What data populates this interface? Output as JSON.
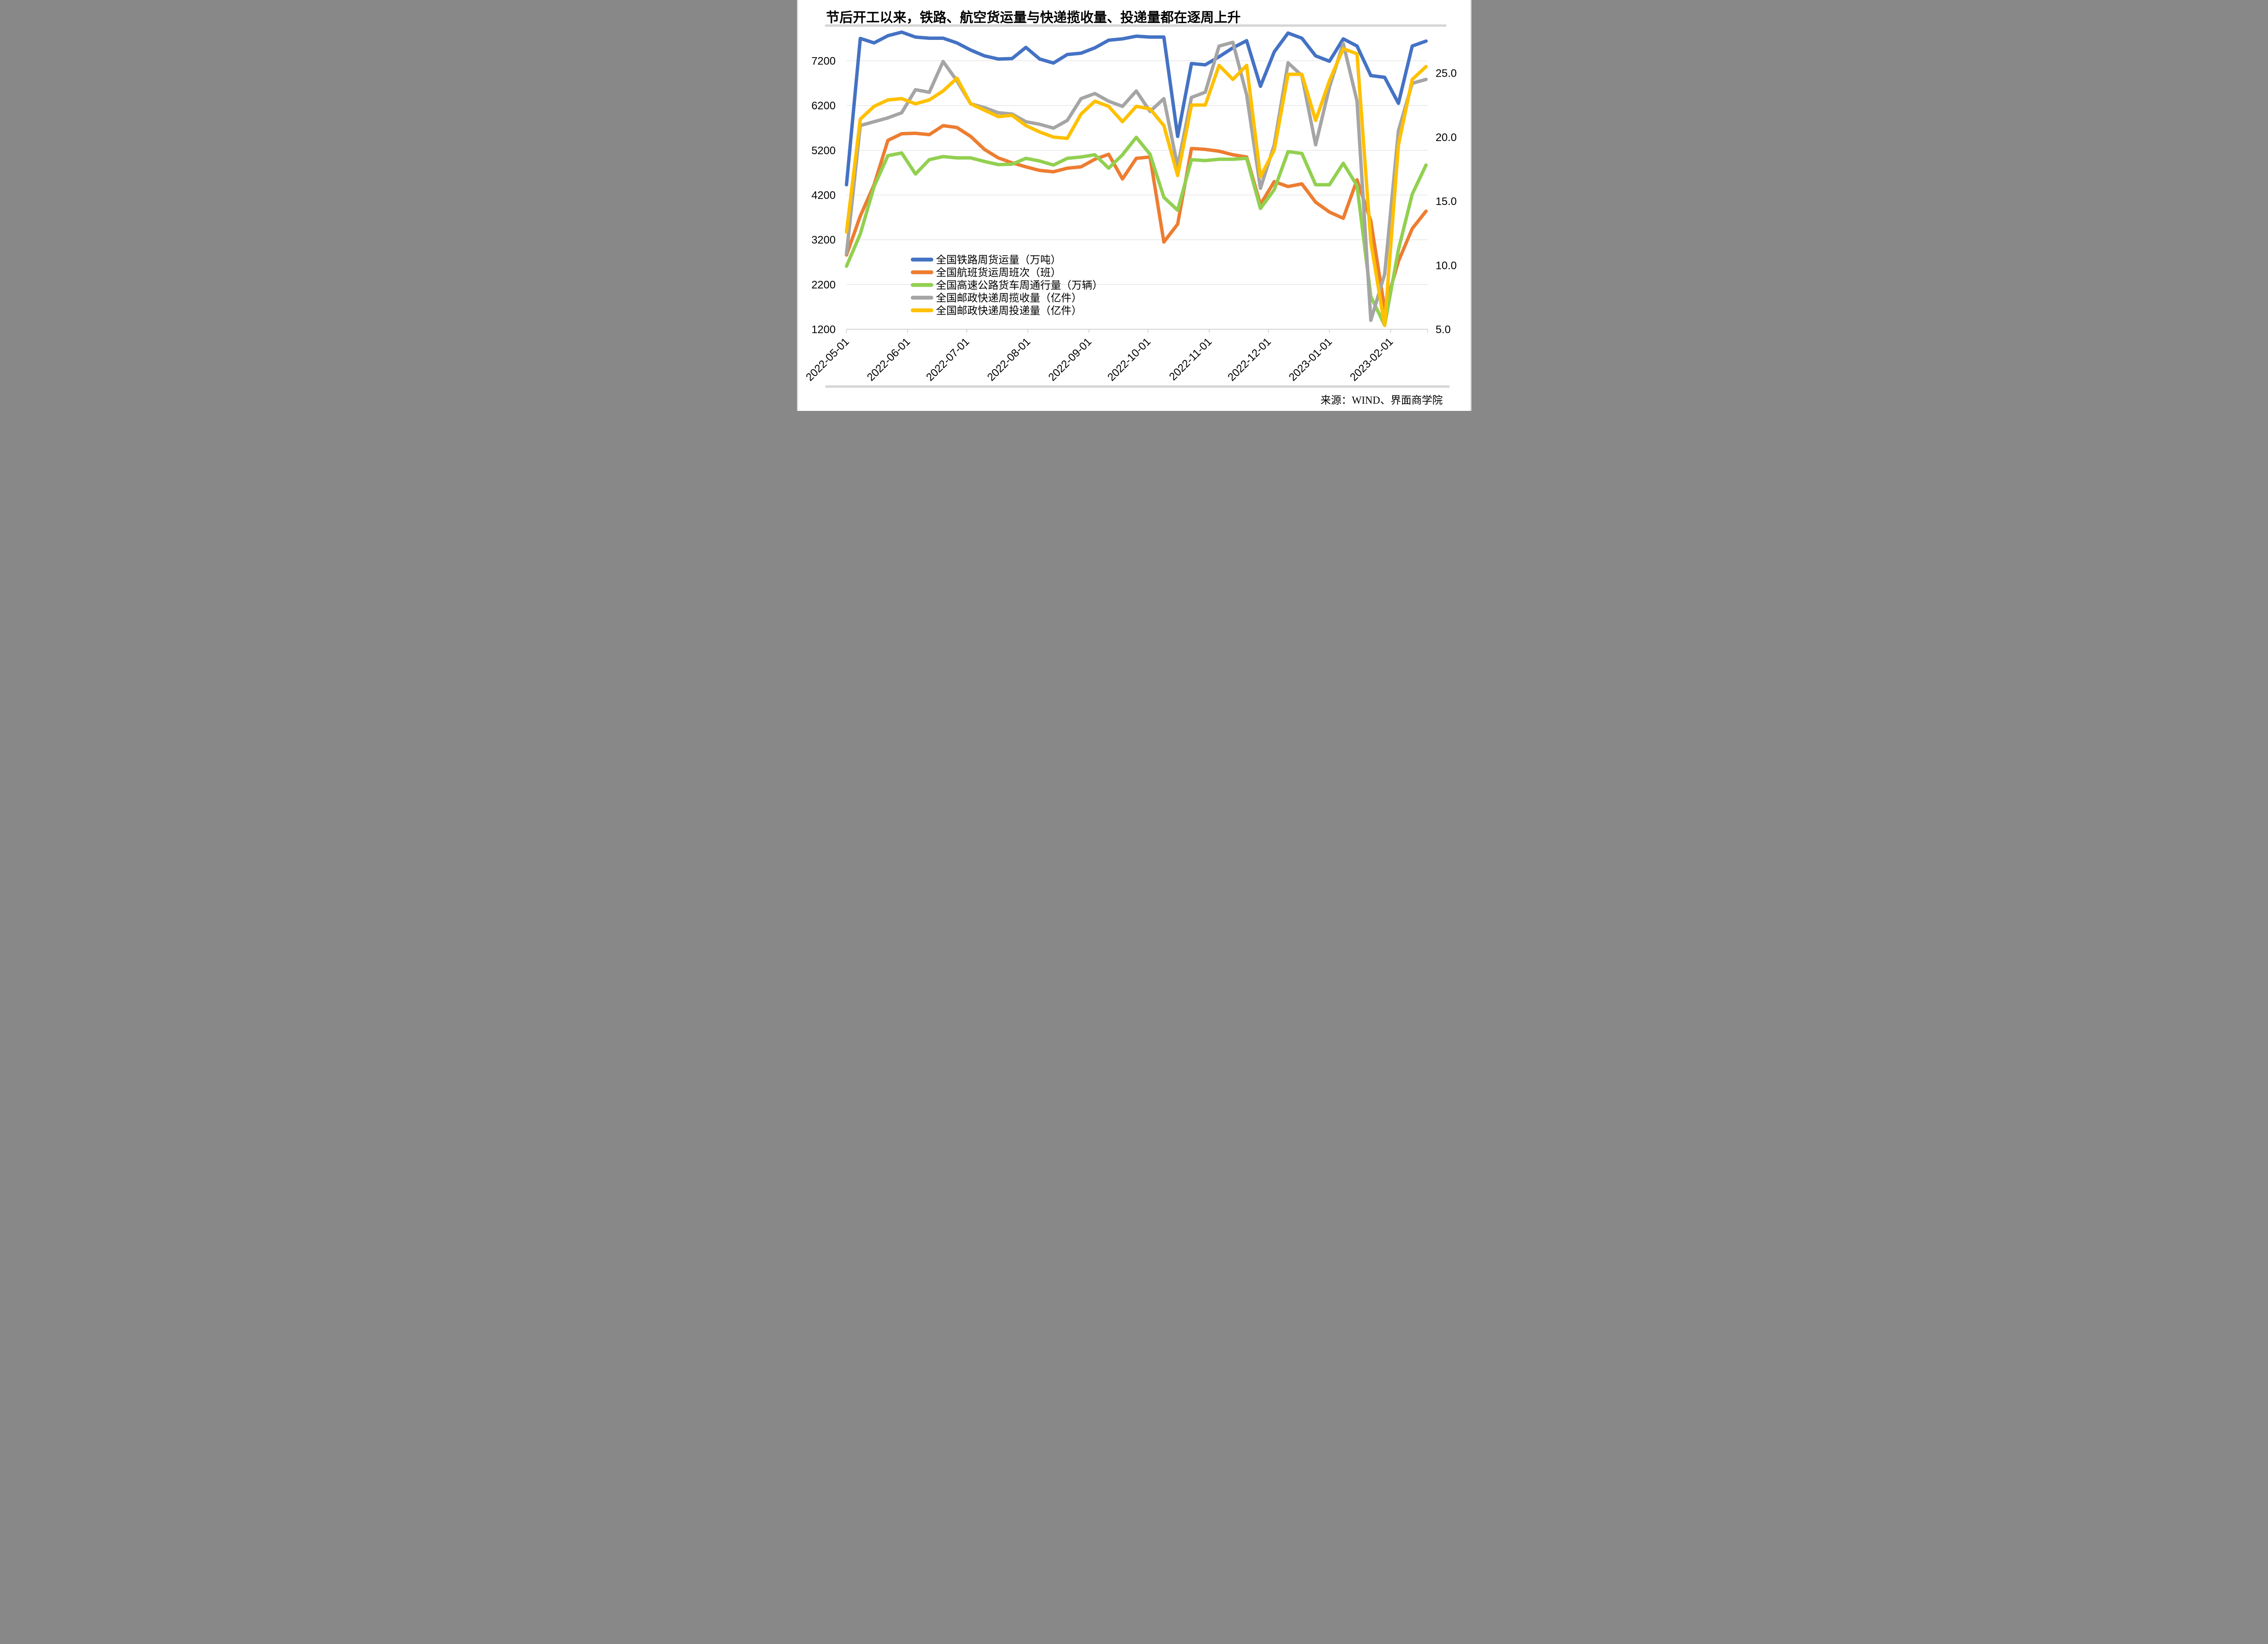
{
  "title": "节后开工以来，铁路、航空货运量与快递揽收量、投递量都在逐周上升",
  "source": "来源：WIND、界面商学院",
  "colors": {
    "rail_blue": "#4472C4",
    "flight_orange": "#ED7D31",
    "truck_green": "#92D050",
    "pickup_gray": "#A5A5A5",
    "delivery_yellow": "#FFC000",
    "gridline": "#D9D9D9",
    "axis_line": "#BFBFBF",
    "divider_bar": "#D6D6D6"
  },
  "chart_data": {
    "type": "line",
    "x_weekly_dates": [
      "2022-05-01",
      "2022-05-08",
      "2022-05-15",
      "2022-05-22",
      "2022-05-29",
      "2022-06-05",
      "2022-06-12",
      "2022-06-19",
      "2022-06-26",
      "2022-07-03",
      "2022-07-10",
      "2022-07-17",
      "2022-07-24",
      "2022-07-31",
      "2022-08-07",
      "2022-08-14",
      "2022-08-21",
      "2022-08-28",
      "2022-09-04",
      "2022-09-11",
      "2022-09-18",
      "2022-09-25",
      "2022-10-02",
      "2022-10-09",
      "2022-10-16",
      "2022-10-23",
      "2022-10-30",
      "2022-11-06",
      "2022-11-13",
      "2022-11-20",
      "2022-11-27",
      "2022-12-04",
      "2022-12-11",
      "2022-12-18",
      "2022-12-25",
      "2023-01-01",
      "2023-01-08",
      "2023-01-15",
      "2023-01-22",
      "2023-01-29",
      "2023-02-05",
      "2023-02-12",
      "2023-02-19"
    ],
    "x_tick_labels": [
      "2022-05-01",
      "2022-06-01",
      "2022-07-01",
      "2022-08-01",
      "2022-09-01",
      "2022-10-01",
      "2022-11-01",
      "2022-12-01",
      "2023-01-01",
      "2023-02-01"
    ],
    "x_tick_day_offsets": [
      0,
      31,
      61,
      92,
      123,
      153,
      184,
      214,
      245,
      276
    ],
    "total_days": 294,
    "series": [
      {
        "name": "全国铁路周货运量（万吨）",
        "axis": "left",
        "color_key": "rail_blue",
        "values": [
          4430,
          7700,
          7600,
          7760,
          7840,
          7730,
          7705,
          7705,
          7600,
          7440,
          7310,
          7240,
          7250,
          7500,
          7240,
          7150,
          7340,
          7370,
          7490,
          7660,
          7690,
          7750,
          7730,
          7730,
          5510,
          7140,
          7110,
          7290,
          7490,
          7650,
          6630,
          7400,
          7820,
          7705,
          7310,
          7190,
          7690,
          7530,
          6870,
          6830,
          6250,
          7530,
          7640
        ]
      },
      {
        "name": "全国航班货运周班次（班）",
        "axis": "left",
        "color_key": "flight_orange",
        "values": [
          2860,
          3730,
          4430,
          5420,
          5570,
          5580,
          5550,
          5750,
          5710,
          5510,
          5220,
          5030,
          4920,
          4830,
          4750,
          4720,
          4800,
          4830,
          5000,
          5110,
          4560,
          5020,
          5050,
          3150,
          3550,
          5240,
          5220,
          5180,
          5100,
          5050,
          3990,
          4500,
          4390,
          4450,
          4040,
          3820,
          3680,
          4540,
          3620,
          1660,
          2720,
          3450,
          3840
        ]
      },
      {
        "name": "全国高速公路货车周通行量（万辆）",
        "axis": "left",
        "color_key": "truck_green",
        "values": [
          2610,
          3330,
          4390,
          5080,
          5140,
          4670,
          4990,
          5060,
          5030,
          5030,
          4950,
          4880,
          4890,
          5020,
          4960,
          4870,
          5020,
          5050,
          5100,
          4800,
          5100,
          5490,
          5110,
          4150,
          3860,
          4990,
          4970,
          5000,
          5000,
          5020,
          3900,
          4320,
          5170,
          5130,
          4430,
          4430,
          4910,
          4410,
          1930,
          1290,
          2980,
          4220,
          4870
        ]
      },
      {
        "name": "全国邮政快递周揽收量（亿件）",
        "axis": "right",
        "color_key": "pickup_gray",
        "values": [
          10.9,
          20.9,
          21.2,
          21.5,
          21.9,
          23.7,
          23.5,
          25.9,
          24.4,
          22.6,
          22.3,
          21.9,
          21.8,
          21.2,
          21.0,
          20.7,
          21.3,
          23.0,
          23.4,
          22.8,
          22.4,
          23.6,
          22.0,
          23.0,
          17.7,
          23.1,
          23.5,
          27.1,
          27.4,
          23.3,
          16.0,
          19.4,
          25.8,
          24.8,
          19.4,
          23.9,
          27.3,
          22.8,
          5.7,
          9.3,
          20.5,
          24.2,
          24.5
        ]
      },
      {
        "name": "全国邮政快递周投递量（亿件）",
        "axis": "right",
        "color_key": "delivery_yellow",
        "values": [
          12.6,
          21.4,
          22.4,
          22.9,
          23.0,
          22.6,
          22.9,
          23.6,
          24.6,
          22.6,
          22.1,
          21.6,
          21.7,
          20.9,
          20.4,
          20.0,
          19.9,
          21.8,
          22.8,
          22.4,
          21.2,
          22.4,
          22.2,
          20.9,
          17.0,
          22.5,
          22.5,
          25.6,
          24.5,
          25.6,
          16.9,
          19.0,
          24.9,
          24.9,
          21.3,
          24.4,
          26.9,
          26.5,
          11.8,
          5.3,
          19.4,
          24.5,
          25.5
        ]
      }
    ],
    "left_axis": {
      "min": 1200,
      "max": 7900,
      "tick_values": [
        7200,
        6200,
        5200,
        4200,
        3200,
        2200,
        1200
      ],
      "tick_labels": [
        "7200",
        "6200",
        "5200",
        "4200",
        "3200",
        "2200",
        "1200"
      ]
    },
    "right_axis": {
      "min": 5.0,
      "max": 28.4,
      "tick_values": [
        25.0,
        20.0,
        15.0,
        10.0,
        5.0
      ],
      "tick_labels": [
        "25.0",
        "20.0",
        "15.0",
        "10.0",
        "5.0"
      ]
    },
    "grid": true,
    "legend_position": "inside-bottom-left"
  }
}
